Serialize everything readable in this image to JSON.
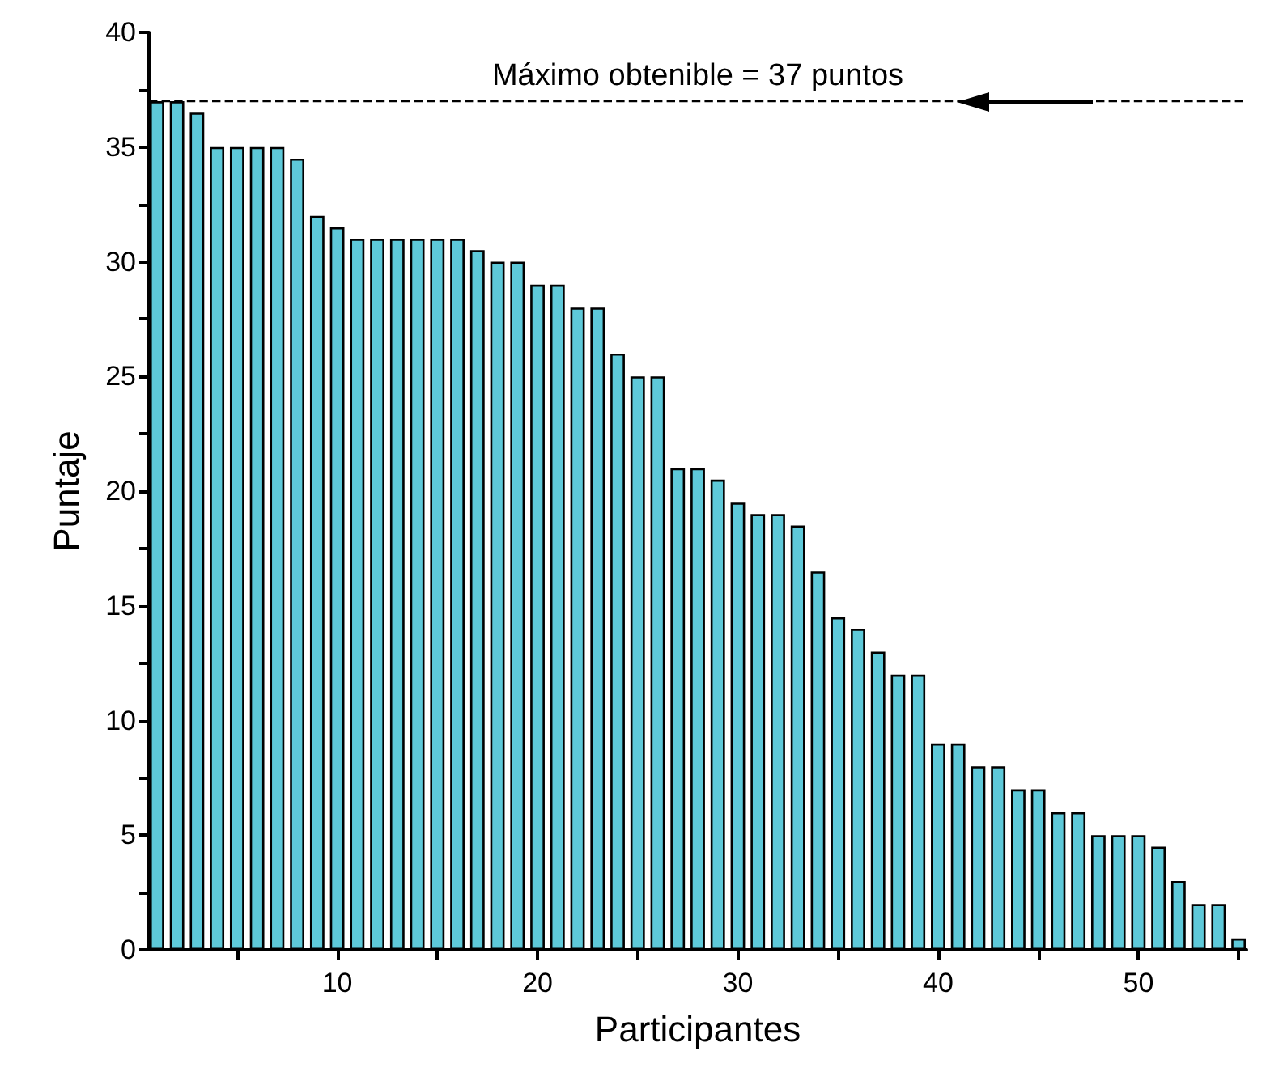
{
  "chart_data": {
    "type": "bar",
    "xlabel": "Participantes",
    "ylabel": "Puntaje",
    "x": [
      1,
      2,
      3,
      4,
      5,
      6,
      7,
      8,
      9,
      10,
      11,
      12,
      13,
      14,
      15,
      16,
      17,
      18,
      19,
      20,
      21,
      22,
      23,
      24,
      25,
      26,
      27,
      28,
      29,
      30,
      31,
      32,
      33,
      34,
      35,
      36,
      37,
      38,
      39,
      40,
      41,
      42,
      43,
      44,
      45,
      46,
      47,
      48,
      49,
      50,
      51,
      52,
      53,
      54,
      55
    ],
    "series": [
      {
        "color": "#5ec9d9",
        "values": [
          37,
          37,
          36.5,
          35,
          35,
          35,
          35,
          34.5,
          32,
          31.5,
          31,
          31,
          31,
          31,
          31,
          31,
          30.5,
          30,
          30,
          29,
          29,
          28,
          28,
          26,
          25,
          25,
          21,
          21,
          20.5,
          19.5,
          19,
          19,
          18.5,
          16.5,
          14.5,
          14,
          13,
          12,
          12,
          9,
          9,
          8,
          8,
          7,
          7,
          6,
          6,
          5,
          5,
          5,
          4.5,
          3,
          2,
          2,
          0.5
        ]
      }
    ],
    "xlim": [
      0.6,
      55.4
    ],
    "xticks": [
      {
        "value": 5,
        "label": null
      },
      10,
      {
        "value": 15,
        "label": null
      },
      20,
      {
        "value": 25,
        "label": null
      },
      30,
      {
        "value": 35,
        "label": null
      },
      40,
      {
        "value": 45,
        "label": null
      },
      50,
      {
        "value": 55,
        "label": null
      }
    ],
    "ylim": [
      0,
      40
    ],
    "yticks": [
      0,
      {
        "value": 2.5,
        "label": null
      },
      5,
      {
        "value": 7.5,
        "label": null
      },
      10,
      {
        "value": 12.5,
        "label": null
      },
      15,
      {
        "value": 17.5,
        "label": null
      },
      20,
      {
        "value": 22.5,
        "label": null
      },
      25,
      {
        "value": 27.5,
        "label": null
      },
      30,
      {
        "value": 32.5,
        "label": null
      },
      35,
      {
        "value": 37.5,
        "label": null
      },
      40
    ],
    "ref_lines": [
      {
        "axis": "y",
        "value": 37,
        "label": "Máximo obtenible = 37 puntos",
        "line_style": "dashed",
        "color": "#000000"
      }
    ],
    "grid": false
  }
}
